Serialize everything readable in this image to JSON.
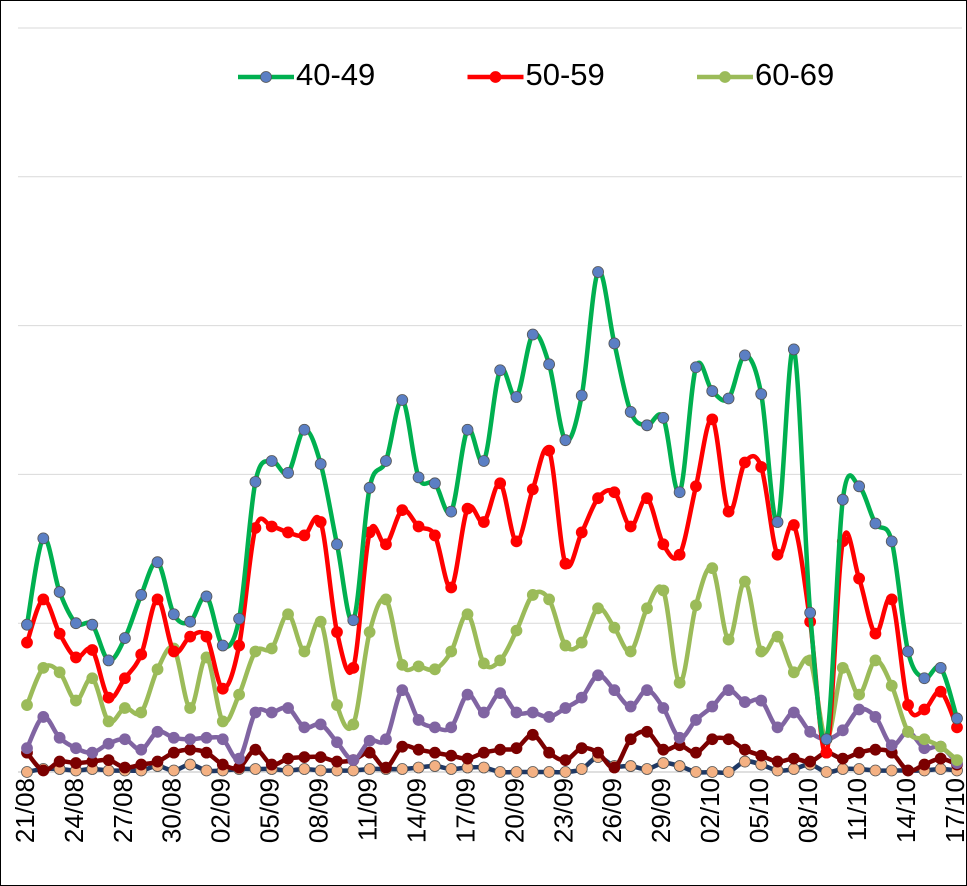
{
  "chart_data": {
    "type": "line",
    "categories": [
      "21/08",
      null,
      null,
      "24/08",
      null,
      null,
      "27/08",
      null,
      null,
      "30/08",
      null,
      null,
      "02/09",
      null,
      null,
      "05/09",
      null,
      null,
      "08/09",
      null,
      null,
      "11/09",
      null,
      null,
      "14/09",
      null,
      null,
      "17/09",
      null,
      null,
      "20/09",
      null,
      null,
      "23/09",
      null,
      null,
      "26/09",
      null,
      null,
      "29/09",
      null,
      null,
      "02/10",
      null,
      null,
      "05/10",
      null,
      null,
      "08/10",
      null,
      null,
      "11/10",
      null,
      null,
      "14/10",
      null,
      null,
      "17/10"
    ],
    "ylim": [
      0,
      5
    ],
    "yticks": [
      0,
      1,
      2,
      3,
      4,
      5
    ],
    "grid": true,
    "legend": "top",
    "series": [
      {
        "name": "40-49",
        "color": "#00b050",
        "marker_color": "#5b7fc4",
        "values": [
          0.99,
          1.57,
          1.21,
          1.0,
          0.99,
          0.75,
          0.9,
          1.19,
          1.41,
          1.06,
          1.01,
          1.18,
          0.85,
          1.03,
          1.95,
          2.09,
          2.01,
          2.3,
          2.07,
          1.53,
          1.02,
          1.91,
          2.09,
          2.5,
          1.98,
          1.94,
          1.75,
          2.3,
          2.09,
          2.7,
          2.52,
          2.94,
          2.74,
          2.23,
          2.53,
          3.36,
          2.88,
          2.42,
          2.33,
          2.38,
          1.88,
          2.72,
          2.56,
          2.51,
          2.8,
          2.54,
          1.68,
          2.84,
          1.07,
          0.22,
          1.83,
          1.92,
          1.67,
          1.55,
          0.81,
          0.63,
          0.7,
          0.36
        ]
      },
      {
        "name": "50-59",
        "color": "#ff0000",
        "marker_color": "#ff0000",
        "values": [
          0.87,
          1.16,
          0.93,
          0.77,
          0.82,
          0.5,
          0.63,
          0.79,
          1.16,
          0.81,
          0.91,
          0.91,
          0.56,
          0.85,
          1.64,
          1.65,
          1.61,
          1.59,
          1.68,
          0.94,
          0.7,
          1.61,
          1.53,
          1.76,
          1.65,
          1.59,
          1.24,
          1.77,
          1.68,
          1.94,
          1.55,
          1.9,
          2.16,
          1.4,
          1.61,
          1.84,
          1.88,
          1.65,
          1.84,
          1.53,
          1.46,
          1.92,
          2.37,
          1.75,
          2.08,
          2.05,
          1.46,
          1.66,
          1.01,
          0.13,
          1.55,
          1.3,
          0.93,
          1.16,
          0.45,
          0.42,
          0.54,
          0.3
        ]
      },
      {
        "name": "60-69",
        "color": "#9bbb59",
        "marker_color": "#9bbb59",
        "values": [
          0.45,
          0.7,
          0.67,
          0.48,
          0.63,
          0.34,
          0.43,
          0.4,
          0.69,
          0.83,
          0.43,
          0.77,
          0.34,
          0.52,
          0.81,
          0.83,
          1.06,
          0.81,
          1.01,
          0.45,
          0.32,
          0.94,
          1.16,
          0.72,
          0.71,
          0.69,
          0.81,
          1.06,
          0.73,
          0.75,
          0.95,
          1.19,
          1.16,
          0.85,
          0.87,
          1.1,
          0.97,
          0.81,
          1.1,
          1.22,
          0.6,
          1.12,
          1.37,
          0.89,
          1.28,
          0.81,
          0.91,
          0.67,
          0.75,
          0.22,
          0.7,
          0.52,
          0.75,
          0.58,
          0.27,
          0.22,
          0.17,
          0.08
        ]
      },
      {
        "color": "#8064a2",
        "marker_color": "#8064a2",
        "values": [
          0.16,
          0.37,
          0.23,
          0.16,
          0.13,
          0.19,
          0.22,
          0.15,
          0.27,
          0.23,
          0.22,
          0.23,
          0.22,
          0.09,
          0.4,
          0.4,
          0.43,
          0.3,
          0.32,
          0.2,
          0.08,
          0.21,
          0.22,
          0.55,
          0.35,
          0.3,
          0.3,
          0.52,
          0.4,
          0.53,
          0.4,
          0.4,
          0.37,
          0.43,
          0.5,
          0.65,
          0.55,
          0.44,
          0.55,
          0.43,
          0.23,
          0.35,
          0.44,
          0.55,
          0.47,
          0.48,
          0.3,
          0.4,
          0.27,
          0.22,
          0.28,
          0.42,
          0.37,
          0.18,
          0.27,
          0.16,
          0.17,
          0.06
        ]
      },
      {
        "color": "#7b0000",
        "marker_color": "#7b0000",
        "values": [
          0.13,
          0.01,
          0.07,
          0.06,
          0.07,
          0.08,
          0.03,
          0.05,
          0.07,
          0.13,
          0.15,
          0.13,
          0.05,
          0.03,
          0.15,
          0.05,
          0.09,
          0.1,
          0.1,
          0.07,
          0.08,
          0.13,
          0.03,
          0.17,
          0.15,
          0.13,
          0.11,
          0.09,
          0.13,
          0.15,
          0.16,
          0.25,
          0.13,
          0.08,
          0.16,
          0.13,
          0.03,
          0.22,
          0.27,
          0.15,
          0.18,
          0.13,
          0.22,
          0.22,
          0.15,
          0.11,
          0.07,
          0.09,
          0.07,
          0.13,
          0.09,
          0.13,
          0.15,
          0.13,
          0.01,
          0.05,
          0.09,
          0.05
        ]
      },
      {
        "color": "#1f3864",
        "marker_color": "#f4b183",
        "values": [
          0.0,
          0.02,
          0.02,
          0.01,
          0.02,
          0.01,
          0.01,
          0.01,
          0.04,
          0.01,
          0.05,
          0.01,
          0.01,
          0.02,
          0.02,
          0.02,
          0.01,
          0.02,
          0.01,
          0.01,
          0.01,
          0.02,
          0.02,
          0.02,
          0.03,
          0.04,
          0.02,
          0.03,
          0.03,
          0.0,
          0.0,
          0.0,
          0.0,
          0.0,
          0.02,
          0.1,
          0.04,
          0.04,
          0.02,
          0.06,
          0.04,
          0.0,
          0.0,
          0.0,
          0.07,
          0.05,
          0.01,
          0.02,
          0.05,
          0.0,
          0.02,
          0.02,
          0.01,
          0.01,
          0.01,
          0.01,
          0.02,
          0.01
        ]
      }
    ]
  }
}
